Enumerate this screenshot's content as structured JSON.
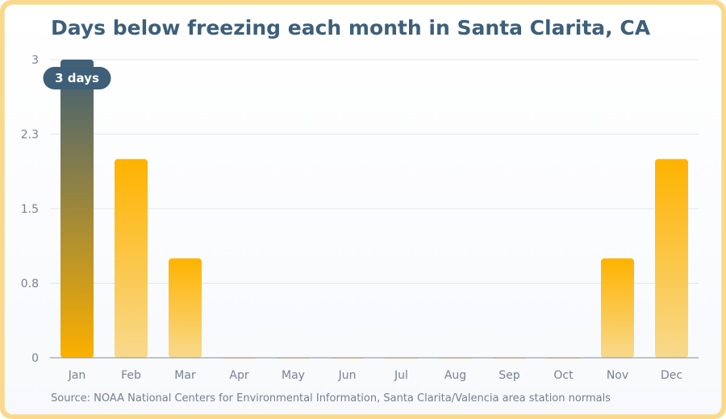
{
  "title": "Days below freezing each month in Santa Clarita, CA",
  "source": "Source: NOAA National Centers for Environmental Information, Santa Clarita/Valencia area station normals",
  "colors": {
    "bar_top": "#ffb300",
    "bar_bottom": "#f8d98c",
    "highlight_top": "#3e5f77",
    "highlight_bottom": "#fcb000",
    "badge": "#3e5f77",
    "axis": "#9aa0aa",
    "grid": "#e3e6ea"
  },
  "chart_data": {
    "type": "bar",
    "categories": [
      "Jan",
      "Feb",
      "Mar",
      "Apr",
      "May",
      "Jun",
      "Jul",
      "Aug",
      "Sep",
      "Oct",
      "Nov",
      "Dec"
    ],
    "values": [
      3,
      2,
      1,
      0,
      0,
      0,
      0,
      0,
      0,
      0,
      1,
      2
    ],
    "ylim": [
      0,
      3
    ],
    "yticks": [
      0,
      0.75,
      1.5,
      2.25,
      3
    ],
    "ytick_labels": [
      "0",
      "0.8",
      "1.5",
      "2.3",
      "3"
    ],
    "grid": true,
    "highlight_index": 0,
    "annotation": "3 days"
  }
}
